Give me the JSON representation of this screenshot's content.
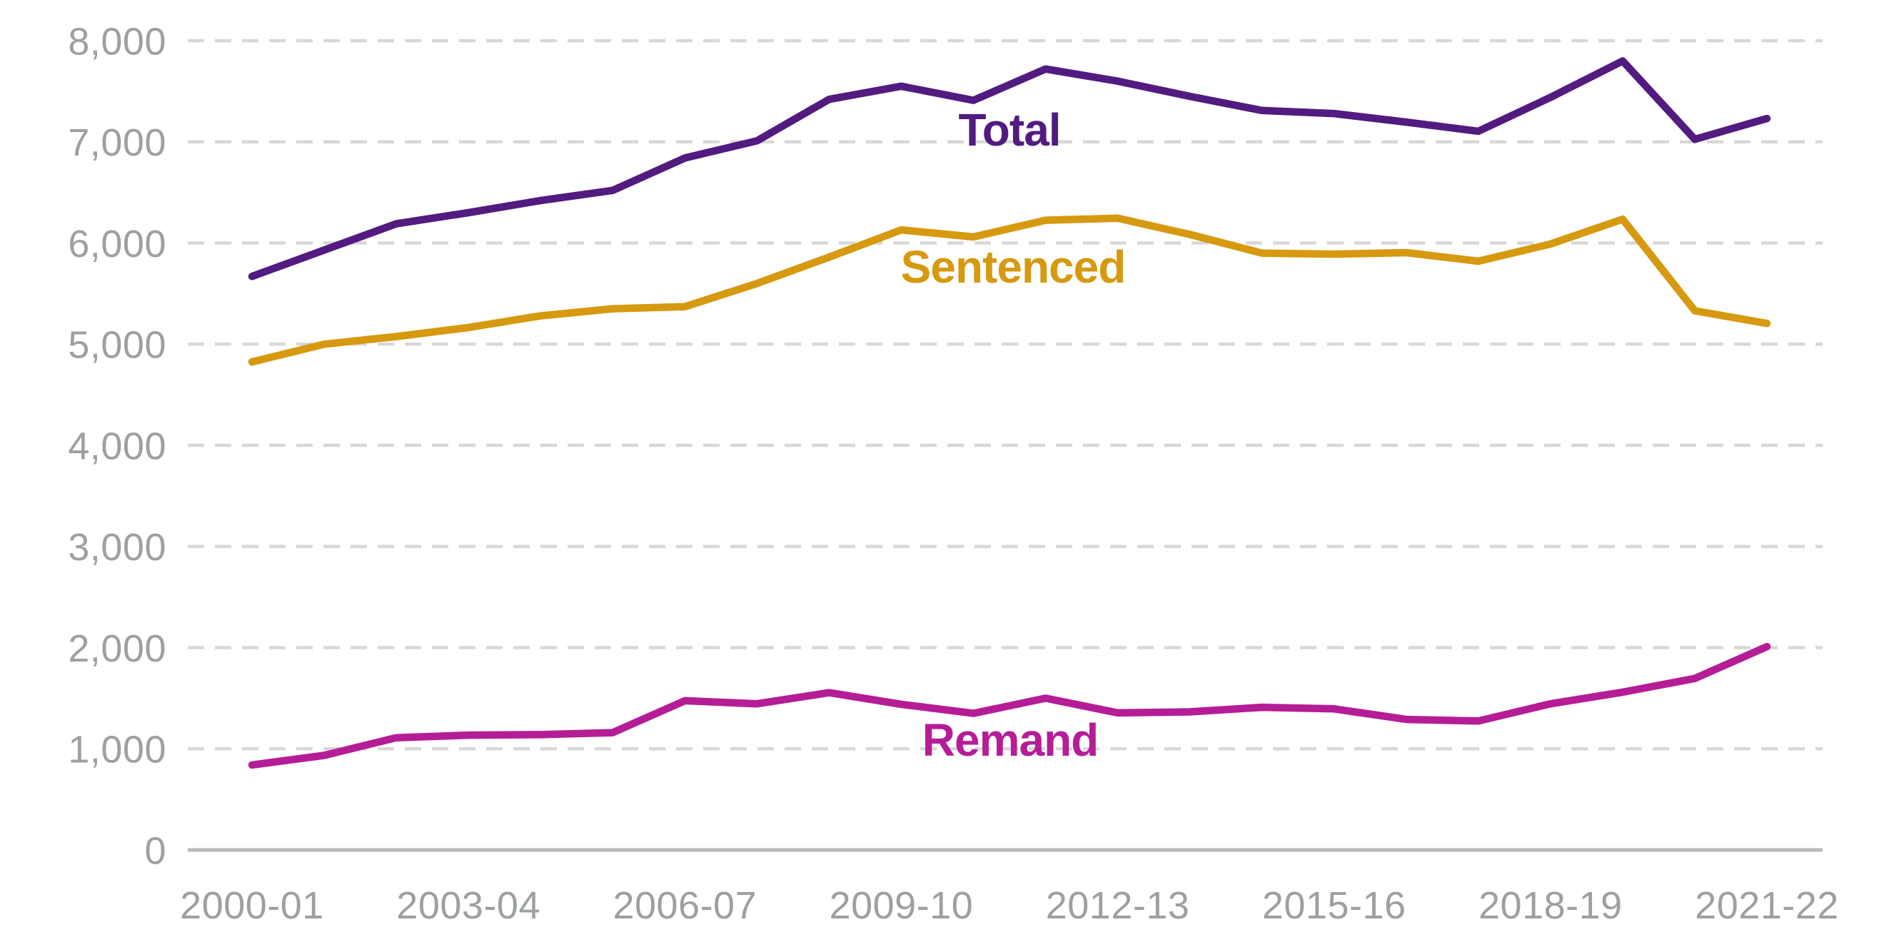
{
  "chart_data": {
    "type": "line",
    "title": "",
    "categories": [
      "2000-01",
      "2001-02",
      "2002-03",
      "2003-04",
      "2004-05",
      "2005-06",
      "2006-07",
      "2007-08",
      "2008-09",
      "2009-10",
      "2010-11",
      "2011-12",
      "2012-13",
      "2013-14",
      "2014-15",
      "2015-16",
      "2016-17",
      "2017-18",
      "2018-19",
      "2019-20",
      "2020-21",
      "2021-22"
    ],
    "x_tick_labels": [
      "2000-01",
      "2003-04",
      "2006-07",
      "2009-10",
      "2012-13",
      "2015-16",
      "2018-19",
      "2021-22"
    ],
    "y_ticks": [
      0,
      1000,
      2000,
      3000,
      4000,
      5000,
      6000,
      7000,
      8000
    ],
    "y_tick_labels": [
      "0",
      "1,000",
      "2,000",
      "3,000",
      "4,000",
      "5,000",
      "6,000",
      "7,000",
      "8,000"
    ],
    "ylim": [
      0,
      8000
    ],
    "grid": "horizontal-dashed",
    "legend": "inline-labels",
    "series": [
      {
        "name": "Total",
        "color": "#521b80",
        "values": [
          5670,
          5930,
          6190,
          6300,
          6420,
          6520,
          6840,
          7010,
          7420,
          7550,
          7410,
          7720,
          7600,
          7450,
          7310,
          7280,
          7195,
          7105,
          7440,
          7800,
          7025,
          7230
        ]
      },
      {
        "name": "Sentenced",
        "color": "#d6990f",
        "values": [
          4825,
          5000,
          5075,
          5165,
          5280,
          5350,
          5370,
          5600,
          5860,
          6130,
          6060,
          6225,
          6245,
          6085,
          5900,
          5890,
          5905,
          5820,
          5990,
          6235,
          5330,
          5205
        ]
      },
      {
        "name": "Remand",
        "color": "#b51d96",
        "values": [
          840,
          935,
          1110,
          1135,
          1140,
          1160,
          1475,
          1445,
          1555,
          1440,
          1350,
          1500,
          1355,
          1365,
          1410,
          1395,
          1290,
          1275,
          1445,
          1560,
          1695,
          2010
        ]
      }
    ]
  },
  "styles": {
    "background": "#ffffff",
    "gridline_color": "#d8d8d8",
    "axis_line_color": "#b6b8ba",
    "tick_label_color": "#9ca0a3"
  }
}
